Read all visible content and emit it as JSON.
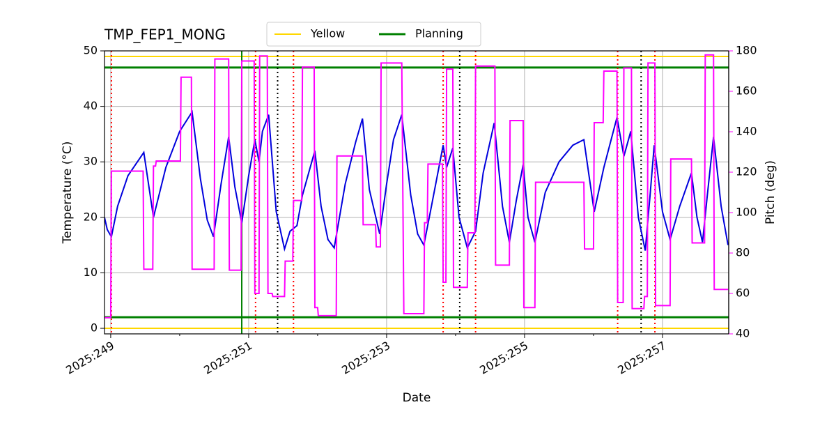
{
  "chart_data": {
    "type": "line",
    "title": "TMP_FEP1_MONG",
    "x_label": "Date",
    "y_label": "Temperature (°C)",
    "y2_label": "Pitch (deg)",
    "y2_color": "#ff00ff",
    "grid": true,
    "legend": "upper center",
    "xlim": [
      248.91,
      257.96
    ],
    "xticks": [
      {
        "value": 249,
        "label": "2025:249"
      },
      {
        "value": 251,
        "label": "2025:251"
      },
      {
        "value": 253,
        "label": "2025:253"
      },
      {
        "value": 255,
        "label": "2025:255"
      },
      {
        "value": 257,
        "label": "2025:257"
      }
    ],
    "xminorticks": [
      250,
      252,
      254,
      256
    ],
    "ylim": [
      -1,
      50
    ],
    "yticks": [
      0,
      10,
      20,
      30,
      40,
      50
    ],
    "y2lim": [
      40,
      180
    ],
    "y2ticks": [
      40,
      60,
      80,
      100,
      120,
      140,
      160,
      180
    ],
    "limit_lines": [
      {
        "name": "Yellow",
        "color": "#ffd700",
        "values": [
          0,
          49
        ]
      },
      {
        "name": "Planning",
        "color": "#008000",
        "values": [
          2,
          47
        ]
      }
    ],
    "vlines": [
      {
        "color": "#008000",
        "style": "solid",
        "values": [
          250.9
        ]
      },
      {
        "color": "#ff0000",
        "style": "dotted",
        "values": [
          249.01,
          251.1,
          251.65,
          253.82,
          254.29,
          256.35,
          256.89
        ]
      },
      {
        "color": "#000000",
        "style": "dotted",
        "values": [
          251.42,
          254.06,
          256.69
        ]
      }
    ],
    "series": [
      {
        "color": "#0000dd",
        "axis": "y",
        "x": [
          248.91,
          248.95,
          249.01,
          249.1,
          249.25,
          249.48,
          249.62,
          249.8,
          250.0,
          250.18,
          250.3,
          250.4,
          250.49,
          250.6,
          250.71,
          250.8,
          250.9,
          251.0,
          251.09,
          251.15,
          251.2,
          251.29,
          251.4,
          251.52,
          251.6,
          251.7,
          251.78,
          251.96,
          252.05,
          252.15,
          252.24,
          252.4,
          252.55,
          252.65,
          252.75,
          252.9,
          253.0,
          253.1,
          253.22,
          253.35,
          253.45,
          253.54,
          253.65,
          253.82,
          253.87,
          253.96,
          254.05,
          254.17,
          254.25,
          254.29,
          254.4,
          254.56,
          254.68,
          254.78,
          254.88,
          254.98,
          255.05,
          255.15,
          255.3,
          255.5,
          255.7,
          255.86,
          256.01,
          256.15,
          256.34,
          256.44,
          256.54,
          256.65,
          256.75,
          256.82,
          256.88,
          257.0,
          257.11,
          257.25,
          257.42,
          257.5,
          257.58,
          257.65,
          257.74,
          257.85,
          257.95
        ],
        "values": [
          20,
          17.8,
          16.5,
          22,
          27.5,
          31.7,
          20,
          29,
          35.5,
          39,
          27,
          19.5,
          16.5,
          26,
          34.5,
          25.5,
          19,
          27.5,
          34,
          30,
          35.5,
          38.5,
          21,
          14.3,
          17.5,
          18.5,
          24,
          32,
          22,
          16,
          14.5,
          26,
          33.5,
          37.8,
          25,
          17,
          26,
          34,
          38.5,
          24,
          17,
          15,
          22,
          33,
          29,
          32.5,
          20,
          14.5,
          16.5,
          17.5,
          28,
          37,
          22,
          15.5,
          23,
          29.5,
          20,
          15.5,
          24.5,
          30,
          33,
          34,
          21,
          29,
          38,
          31,
          35.5,
          20,
          14,
          24,
          33,
          21,
          16,
          22,
          28,
          20,
          15.5,
          24,
          34.5,
          22,
          15
        ]
      },
      {
        "color": "#ff00ff",
        "axis": "y2",
        "x": [
          248.91,
          249.0,
          249.01,
          249.47,
          249.48,
          249.61,
          249.62,
          249.65,
          249.66,
          250.01,
          250.02,
          250.17,
          250.18,
          250.5,
          250.51,
          250.71,
          250.72,
          250.89,
          250.9,
          251.08,
          251.09,
          251.15,
          251.16,
          251.27,
          251.28,
          251.34,
          251.35,
          251.52,
          251.53,
          251.64,
          251.65,
          251.77,
          251.78,
          251.95,
          251.96,
          252.0,
          252.01,
          252.27,
          252.28,
          252.65,
          252.66,
          252.84,
          252.85,
          252.91,
          252.92,
          253.22,
          253.25,
          253.54,
          253.55,
          253.59,
          253.6,
          253.81,
          253.82,
          253.86,
          253.87,
          253.96,
          253.97,
          254.17,
          254.18,
          254.28,
          254.29,
          254.57,
          254.58,
          254.78,
          254.79,
          254.98,
          254.99,
          255.15,
          255.16,
          255.86,
          255.87,
          256.0,
          256.01,
          256.14,
          256.15,
          256.34,
          256.35,
          256.43,
          256.44,
          256.55,
          256.56,
          256.73,
          256.74,
          256.78,
          256.79,
          256.89,
          256.9,
          257.11,
          257.12,
          257.42,
          257.43,
          257.61,
          257.62,
          257.74,
          257.75,
          257.95
        ],
        "values": [
          48,
          48,
          120.5,
          120.5,
          72,
          72,
          123,
          123,
          125.5,
          125.5,
          167,
          167,
          72,
          72,
          176,
          176,
          71.5,
          71.5,
          175,
          175,
          60,
          60,
          177.5,
          177.5,
          60,
          60,
          58.5,
          58.5,
          76,
          76,
          106,
          106,
          172,
          172,
          53,
          53,
          49,
          49,
          128,
          128,
          94,
          94,
          83,
          83,
          174,
          174,
          50,
          50,
          95,
          95,
          124,
          124,
          65.5,
          65.5,
          171,
          171,
          63,
          63,
          90,
          90,
          172.5,
          172.5,
          74,
          74,
          145.5,
          145.5,
          53,
          53,
          115,
          115,
          82,
          82,
          144.5,
          144.5,
          170,
          170,
          55.5,
          55.5,
          171.5,
          171.5,
          52.5,
          52.5,
          58.5,
          58.5,
          174,
          174,
          54,
          54,
          126.5,
          126.5,
          85,
          85,
          178,
          178,
          62,
          62
        ]
      }
    ]
  }
}
